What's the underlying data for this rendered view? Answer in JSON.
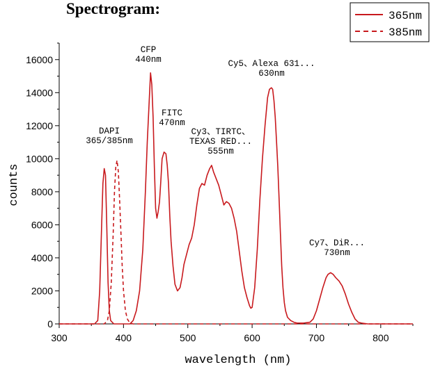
{
  "chart_data": {
    "type": "line",
    "title": "Spectrogram:",
    "xlabel": "wavelength (nm)",
    "ylabel": "counts",
    "xlim": [
      300,
      850
    ],
    "ylim": [
      0,
      17000
    ],
    "x_ticks": [
      "300",
      "400",
      "500",
      "600",
      "700",
      "800"
    ],
    "y_ticks": [
      "0",
      "2000",
      "4000",
      "6000",
      "8000",
      "10000",
      "12000",
      "14000",
      "16000"
    ],
    "grid": false,
    "legend_position": "top-right",
    "color": "#c8191d",
    "series": [
      {
        "name": "365nm",
        "style": "solid",
        "x": [
          300,
          355,
          360,
          363,
          366,
          368,
          370,
          372,
          374,
          376,
          378,
          380,
          385,
          390,
          395,
          400,
          405,
          410,
          415,
          420,
          425,
          430,
          434,
          437,
          440,
          442,
          444,
          446,
          448,
          450,
          452,
          454,
          456,
          458,
          460,
          463,
          466,
          468,
          470,
          472,
          474,
          477,
          480,
          484,
          488,
          491,
          494,
          498,
          502,
          506,
          510,
          514,
          518,
          522,
          526,
          530,
          534,
          537,
          540,
          544,
          548,
          552,
          556,
          560,
          564,
          568,
          572,
          576,
          580,
          584,
          588,
          592,
          596,
          598,
          600,
          604,
          608,
          612,
          616,
          620,
          624,
          627,
          630,
          632,
          634,
          636,
          638,
          640,
          642,
          644,
          646,
          648,
          650,
          652,
          655,
          660,
          665,
          670,
          680,
          690,
          695,
          700,
          705,
          710,
          715,
          718,
          722,
          726,
          730,
          735,
          740,
          745,
          750,
          755,
          760,
          765,
          770,
          780,
          800,
          850
        ],
        "y": [
          0,
          0,
          200,
          2000,
          6000,
          8500,
          9400,
          9000,
          6000,
          2500,
          800,
          200,
          0,
          0,
          0,
          0,
          0,
          0,
          200,
          800,
          2000,
          4500,
          8000,
          11000,
          13500,
          15200,
          14500,
          12500,
          9500,
          7000,
          6400,
          6800,
          7400,
          8600,
          10000,
          10400,
          10300,
          9600,
          8500,
          6500,
          5000,
          3500,
          2400,
          2000,
          2200,
          2800,
          3600,
          4200,
          4800,
          5200,
          6000,
          7200,
          8200,
          8500,
          8400,
          9000,
          9400,
          9600,
          9200,
          8800,
          8400,
          7800,
          7200,
          7400,
          7300,
          7000,
          6400,
          5600,
          4400,
          3200,
          2200,
          1600,
          1100,
          950,
          1000,
          2200,
          4500,
          7500,
          10000,
          12000,
          13700,
          14200,
          14300,
          14200,
          13500,
          12500,
          11000,
          9500,
          7500,
          5500,
          3500,
          2200,
          1300,
          800,
          400,
          200,
          100,
          50,
          50,
          100,
          300,
          800,
          1500,
          2200,
          2800,
          3000,
          3100,
          3000,
          2800,
          2600,
          2300,
          1800,
          1200,
          700,
          300,
          100,
          50,
          0,
          0,
          0
        ]
      },
      {
        "name": "385nm",
        "style": "dashed",
        "x": [
          300,
          370,
          375,
          378,
          381,
          384,
          386,
          388,
          390,
          392,
          394,
          396,
          398,
          400,
          403,
          406,
          410,
          415,
          850
        ],
        "y": [
          0,
          0,
          200,
          800,
          2500,
          5500,
          8000,
          9500,
          9900,
          9200,
          7500,
          5500,
          3500,
          2000,
          800,
          300,
          50,
          0,
          0
        ]
      }
    ],
    "annotations": [
      {
        "lines": [
          "DAPI",
          "365/385nm"
        ]
      },
      {
        "lines": [
          "CFP",
          "440nm"
        ]
      },
      {
        "lines": [
          "FITC",
          "470nm"
        ]
      },
      {
        "lines": [
          "Cy3、TIRTC、",
          "TEXAS RED...",
          "555nm"
        ]
      },
      {
        "lines": [
          "Cy5、Alexa 631...",
          "630nm"
        ]
      },
      {
        "lines": [
          "Cy7、DiR...",
          "730nm"
        ]
      }
    ]
  }
}
